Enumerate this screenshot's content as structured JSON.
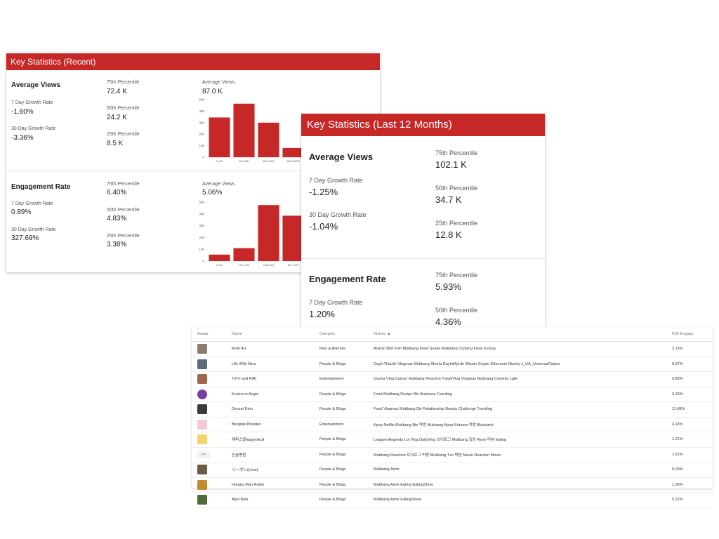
{
  "card_recent": {
    "title": "Key Statistics (Recent)",
    "views": {
      "title": "Average Views",
      "growth7_label": "7 Day Growth Rate",
      "growth7_value": "-1.60%",
      "growth30_label": "30 Day Growth Rate",
      "growth30_value": "-3.36%",
      "p75_label": "75th Percentile",
      "p75_value": "72.4 K",
      "p50_label": "50th Percentile",
      "p50_value": "24.2 K",
      "p25_label": "25th Percentile",
      "p25_value": "8.5 K",
      "avg_label": "Average Views",
      "avg_value": "87.0 K"
    },
    "engagement": {
      "title": "Engagement Rate",
      "growth7_label": "7 Day Growth Rate",
      "growth7_value": "0.89%",
      "growth30_label": "30 Day Growth Rate",
      "growth30_value": "327.69%",
      "p75_label": "75th Percentile",
      "p75_value": "6.40%",
      "p50_label": "50th Percentile",
      "p50_value": "4.83%",
      "p25_label": "25th Percentile",
      "p25_value": "3.38%",
      "avg_label": "Average Views",
      "avg_value": "5.06%"
    }
  },
  "card_12m": {
    "title": "Key Statistics (Last 12 Months)",
    "views": {
      "title": "Average Views",
      "growth7_label": "7 Day Growth Rate",
      "growth7_value": "-1.25%",
      "growth30_label": "30 Day Growth Rate",
      "growth30_value": "-1.04%",
      "p75_label": "75th Percentile",
      "p75_value": "102.1 K",
      "p50_label": "50th Percentile",
      "p50_value": "34.7 K",
      "p25_label": "25th Percentile",
      "p25_value": "12.8 K"
    },
    "engagement": {
      "title": "Engagement Rate",
      "growth7_label": "7 Day Growth Rate",
      "growth7_value": "1.20%",
      "p75_label": "75th Percentile",
      "p75_value": "5.93%",
      "p50_label": "50th Percentile",
      "p50_value": "4.36%"
    }
  },
  "chart_data": [
    {
      "type": "bar",
      "categories": [
        "0-10K",
        "10K-50K",
        "50K-200K",
        "200K-500K"
      ],
      "values": [
        345,
        465,
        300,
        80
      ],
      "ylim": [
        0,
        500
      ],
      "yticks": [
        0,
        100,
        200,
        300,
        400,
        500
      ],
      "color": "#c62828"
    },
    {
      "type": "bar",
      "categories": [
        "0-1%",
        "1%-2.5%",
        "2.5%-5%",
        "5%-7.5%"
      ],
      "values": [
        55,
        110,
        475,
        385
      ],
      "ylim": [
        0,
        500
      ],
      "yticks": [
        0,
        100,
        200,
        300,
        400,
        500
      ],
      "color": "#c62828"
    }
  ],
  "table": {
    "headers": [
      "Avatar",
      "Name",
      "Category",
      "Niches",
      "R20 Engage"
    ],
    "rows": [
      {
        "name": "Riski Art",
        "category": "Pets & Animals",
        "niches": "Animal Bird Fish Mukbang Food Snake Mukbang Cooking Food Kucing",
        "engage": "2.13%",
        "avatar_color": "#8d7b6b",
        "avatar_shape": "square"
      },
      {
        "name": "Life With Nina",
        "category": "People & Blogs",
        "niches": "DayInTheLife Vlogmas Mukbang Shorts DayInMyLife Bitcoin Crypto Ethereum Disney s_UA_UniversalTopics",
        "engage": "0.97%",
        "avatar_color": "#5b6b7a",
        "avatar_shape": "square"
      },
      {
        "name": "TriTri and RiRi",
        "category": "Entertainment",
        "niches": "Drama Vlog Cancer Mukbang Reaction TravelVlog Vlogmas Mukbang Comedy Lgbt",
        "engage": "6.89%",
        "avatar_color": "#a0674f",
        "avatar_shape": "square"
      },
      {
        "name": "Kusina ni Angel",
        "category": "People & Blogs",
        "niches": "Food Mukbang Recipe Bts Business Trending",
        "engage": "3.29%",
        "avatar_color": "#7b3fa0",
        "avatar_shape": "round"
      },
      {
        "name": "Denzel Dion",
        "category": "People & Blogs",
        "niches": "Food Vlogmas Mukbang Diy Relationship Beauty Challenge Trending",
        "engage": "11.49%",
        "avatar_color": "#3e3a36",
        "avatar_shape": "square"
      },
      {
        "name": "Bangtan Blondes",
        "category": "Entertainment",
        "niches": "Kpop Netflix Mukbang Bts 먹방 Mukbang Kpop Kdrama 먹방 Blackpink",
        "engage": "4.13%",
        "avatar_color": "#f2c9d4",
        "avatar_shape": "square"
      },
      {
        "name": "해피스컬happyskull",
        "category": "People & Blogs",
        "niches": "Leagueoflegends Lol Vlog DailyVlog 브이로그 Mukbang 일상 Asmr 리뷰 Eating",
        "engage": "1.21%",
        "avatar_color": "#f4d36a",
        "avatar_shape": "square"
      },
      {
        "name": "단골병원",
        "category": "People & Blogs",
        "niches": "Mukbang Reaction 브이로그 먹방 Mukbang Tvn 먹방 Movie Reaction Movie",
        "engage": "1.61%",
        "avatar_color": "#f3f3f3",
        "avatar_shape": "text",
        "avatar_text": "ᴴᵒˢᵖ"
      },
      {
        "name": "リーポン(Lime)",
        "category": "People & Blogs",
        "niches": "Mukbang Asmr",
        "engage": "0.00%",
        "avatar_color": "#6b5a44",
        "avatar_shape": "square"
      },
      {
        "name": "Hungry Man Robin",
        "category": "People & Blogs",
        "niches": "Mukbang Asmr Eating EatingShow",
        "engage": "1.28%",
        "avatar_color": "#c08a2e",
        "avatar_shape": "square"
      },
      {
        "name": "Apel Bats",
        "category": "People & Blogs",
        "niches": "Mukbang Asmr EatingShow",
        "engage": "5.22%",
        "avatar_color": "#4f6b3a",
        "avatar_shape": "square"
      }
    ]
  }
}
